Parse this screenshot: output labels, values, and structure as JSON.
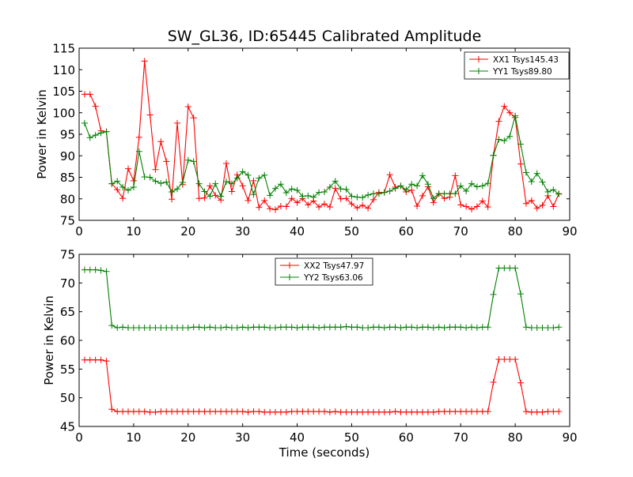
{
  "figure": {
    "title": "SW_GL36, ID:65445 Calibrated Amplitude"
  },
  "chart_data": [
    {
      "type": "line",
      "title": "SW_GL36, ID:65445 Calibrated Amplitude",
      "xlabel": "",
      "ylabel": "Power in Kelvin",
      "xlim": [
        0,
        90
      ],
      "ylim": [
        75,
        115
      ],
      "xticks": [
        0,
        10,
        20,
        30,
        40,
        50,
        60,
        70,
        80,
        90
      ],
      "yticks": [
        75,
        80,
        85,
        90,
        95,
        100,
        105,
        110,
        115
      ],
      "grid": false,
      "legend": "top-right",
      "x": [
        1,
        2,
        3,
        4,
        5,
        6,
        7,
        8,
        9,
        10,
        11,
        12,
        13,
        14,
        15,
        16,
        17,
        18,
        19,
        20,
        21,
        22,
        23,
        24,
        25,
        26,
        27,
        28,
        29,
        30,
        31,
        32,
        33,
        34,
        35,
        36,
        37,
        38,
        39,
        40,
        41,
        42,
        43,
        44,
        45,
        46,
        47,
        48,
        49,
        50,
        51,
        52,
        53,
        54,
        55,
        56,
        57,
        58,
        59,
        60,
        61,
        62,
        63,
        64,
        65,
        66,
        67,
        68,
        69,
        70,
        71,
        72,
        73,
        74,
        75,
        76,
        77,
        78,
        79,
        80,
        81,
        82,
        83,
        84,
        85,
        86,
        87,
        88
      ],
      "series": [
        {
          "name": "XX1 Tsys145.43",
          "color": "#ff0000",
          "values": [
            104.3,
            104.3,
            101.5,
            95.8,
            95.6,
            83.5,
            82.1,
            80.1,
            87.0,
            84.2,
            94.3,
            112.0,
            99.5,
            86.8,
            93.3,
            88.7,
            79.9,
            97.6,
            83.3,
            101.4,
            98.8,
            80.1,
            80.2,
            83.0,
            80.8,
            79.7,
            88.2,
            81.7,
            85.6,
            83.0,
            79.6,
            84.2,
            78.0,
            79.6,
            77.7,
            77.5,
            78.3,
            78.2,
            80.1,
            79.1,
            80.1,
            78.6,
            79.5,
            78.1,
            78.8,
            78.1,
            82.4,
            80.0,
            80.1,
            78.8,
            77.9,
            78.5,
            77.8,
            79.8,
            81.5,
            81.5,
            85.6,
            82.7,
            83.0,
            81.6,
            82.0,
            78.3,
            80.7,
            82.8,
            79.1,
            81.2,
            80.1,
            80.4,
            85.4,
            78.6,
            78.2,
            77.6,
            78.2,
            79.5,
            78.1,
            90.1,
            98.0,
            101.5,
            100.0,
            98.9,
            88.1,
            78.9,
            79.6,
            77.8,
            78.5,
            80.7,
            78.2,
            81.2
          ]
        },
        {
          "name": "YY1 Tsys89.80",
          "color": "#008000",
          "values": [
            97.6,
            94.2,
            94.8,
            95.3,
            95.6,
            83.5,
            84.1,
            82.7,
            82.0,
            82.7,
            91.0,
            85.1,
            85.0,
            84.1,
            83.6,
            83.9,
            81.6,
            82.3,
            83.8,
            89.0,
            88.7,
            83.5,
            81.7,
            80.6,
            83.5,
            80.6,
            84.0,
            83.5,
            84.8,
            86.3,
            85.5,
            81.0,
            84.8,
            85.5,
            80.8,
            82.4,
            83.4,
            81.4,
            82.3,
            82.0,
            80.6,
            80.7,
            80.4,
            81.5,
            81.6,
            82.7,
            84.1,
            82.3,
            82.2,
            80.6,
            80.4,
            80.3,
            80.9,
            81.2,
            81.2,
            81.5,
            81.8,
            82.4,
            83.0,
            82.1,
            83.4,
            83.0,
            85.4,
            83.4,
            80.1,
            81.2,
            81.2,
            81.2,
            81.2,
            83.0,
            81.8,
            83.5,
            82.8,
            83.0,
            83.6,
            90.1,
            93.8,
            93.5,
            94.5,
            99.3,
            92.7,
            86.1,
            84.0,
            85.9,
            83.9,
            81.6,
            82.1,
            81.1
          ]
        }
      ]
    },
    {
      "type": "line",
      "title": "",
      "xlabel": "Time (seconds)",
      "ylabel": "Power in Kelvin",
      "xlim": [
        0,
        90
      ],
      "ylim": [
        45,
        75
      ],
      "xticks": [
        0,
        10,
        20,
        30,
        40,
        50,
        60,
        70,
        80,
        90
      ],
      "yticks": [
        45,
        50,
        55,
        60,
        65,
        70,
        75
      ],
      "grid": false,
      "legend": "top-center",
      "x": [
        1,
        2,
        3,
        4,
        5,
        6,
        7,
        8,
        9,
        10,
        11,
        12,
        13,
        14,
        15,
        16,
        17,
        18,
        19,
        20,
        21,
        22,
        23,
        24,
        25,
        26,
        27,
        28,
        29,
        30,
        31,
        32,
        33,
        34,
        35,
        36,
        37,
        38,
        39,
        40,
        41,
        42,
        43,
        44,
        45,
        46,
        47,
        48,
        49,
        50,
        51,
        52,
        53,
        54,
        55,
        56,
        57,
        58,
        59,
        60,
        61,
        62,
        63,
        64,
        65,
        66,
        67,
        68,
        69,
        70,
        71,
        72,
        73,
        74,
        75,
        76,
        77,
        78,
        79,
        80,
        81,
        82,
        83,
        84,
        85,
        86,
        87,
        88
      ],
      "series": [
        {
          "name": "XX2 Tsys47.97",
          "color": "#ff0000",
          "values": [
            56.6,
            56.6,
            56.6,
            56.6,
            56.4,
            48.0,
            47.6,
            47.6,
            47.6,
            47.6,
            47.6,
            47.6,
            47.5,
            47.5,
            47.6,
            47.6,
            47.6,
            47.6,
            47.6,
            47.6,
            47.6,
            47.6,
            47.6,
            47.6,
            47.6,
            47.6,
            47.6,
            47.6,
            47.6,
            47.6,
            47.5,
            47.6,
            47.6,
            47.5,
            47.5,
            47.5,
            47.5,
            47.5,
            47.6,
            47.6,
            47.6,
            47.6,
            47.6,
            47.6,
            47.6,
            47.5,
            47.6,
            47.5,
            47.5,
            47.5,
            47.5,
            47.5,
            47.5,
            47.5,
            47.5,
            47.5,
            47.5,
            47.6,
            47.5,
            47.5,
            47.5,
            47.5,
            47.5,
            47.5,
            47.5,
            47.6,
            47.6,
            47.6,
            47.6,
            47.6,
            47.6,
            47.6,
            47.6,
            47.6,
            47.6,
            52.7,
            56.7,
            56.7,
            56.7,
            56.7,
            52.6,
            47.6,
            47.5,
            47.5,
            47.5,
            47.6,
            47.6,
            47.6
          ]
        },
        {
          "name": "YY2 Tsys63.06",
          "color": "#008000",
          "values": [
            72.3,
            72.3,
            72.3,
            72.2,
            72.0,
            62.6,
            62.2,
            62.3,
            62.2,
            62.2,
            62.2,
            62.2,
            62.2,
            62.2,
            62.2,
            62.2,
            62.2,
            62.2,
            62.2,
            62.2,
            62.3,
            62.3,
            62.2,
            62.3,
            62.2,
            62.2,
            62.3,
            62.2,
            62.2,
            62.3,
            62.2,
            62.3,
            62.3,
            62.3,
            62.2,
            62.2,
            62.3,
            62.3,
            62.3,
            62.2,
            62.3,
            62.3,
            62.3,
            62.2,
            62.3,
            62.3,
            62.3,
            62.3,
            62.4,
            62.3,
            62.3,
            62.2,
            62.2,
            62.3,
            62.3,
            62.2,
            62.3,
            62.3,
            62.2,
            62.3,
            62.3,
            62.2,
            62.3,
            62.3,
            62.2,
            62.3,
            62.2,
            62.3,
            62.3,
            62.3,
            62.2,
            62.3,
            62.2,
            62.3,
            62.3,
            68.0,
            72.6,
            72.6,
            72.6,
            72.6,
            68.1,
            62.3,
            62.2,
            62.2,
            62.2,
            62.2,
            62.2,
            62.3
          ]
        }
      ]
    }
  ]
}
